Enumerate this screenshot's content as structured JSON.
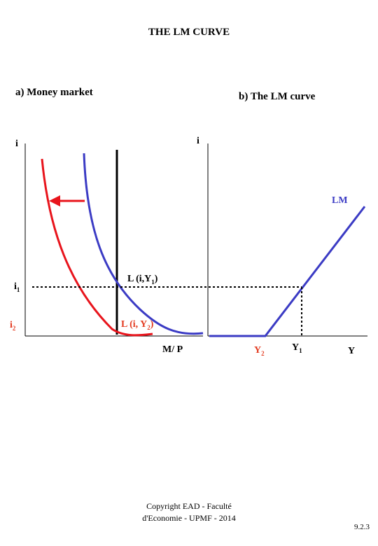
{
  "title": "THE LM CURVE",
  "panel_a": {
    "heading": "a) Money market",
    "y_axis": "i",
    "x_axis": "M/ P",
    "i1_label": "i",
    "i1_sub": "1",
    "i2_label": "i",
    "i2_sub": "2",
    "curve_y1_label": "L (i,Y",
    "curve_y1_sub": "1",
    "curve_y1_close": ")",
    "curve_y2_label": "L (i, Y",
    "curve_y2_sub": "2",
    "curve_y2_close": ")"
  },
  "panel_b": {
    "heading": "b) The LM curve",
    "y_axis": "i",
    "x_axis": "Y",
    "curve_label": "LM",
    "y1_label": "Y",
    "y1_sub": "1",
    "y2_label": "Y",
    "y2_sub": "2"
  },
  "footer": {
    "copyright_line1": "Copyright EAD - Faculté",
    "copyright_line2": "d'Economie - UPMF - 2014",
    "page_number": "9.2.3"
  },
  "colors": {
    "red": "#e8141c",
    "blue": "#3b3bc4",
    "red_text": "#e33a1f",
    "axis": "#000000"
  }
}
